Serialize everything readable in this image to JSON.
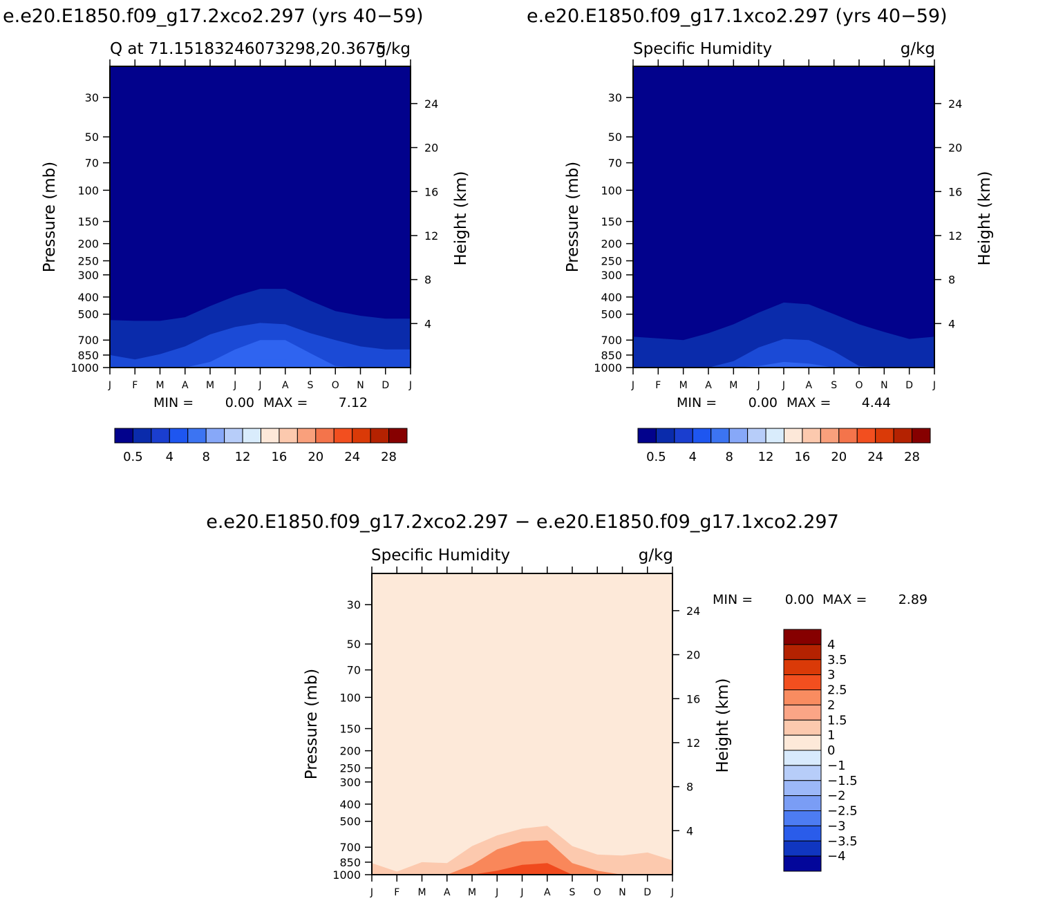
{
  "panels": [
    {
      "id": "p1",
      "run_title": "e.e20.E1850.f09_g17.2xco2.297 (yrs 40−59)",
      "left_title": "Q at 71.15183246073298,20.3675",
      "units": "g/kg",
      "min_label": "MIN =",
      "min_value": "0.00",
      "max_label": "MAX =",
      "max_value": "7.12",
      "fill": [
        "#02028c",
        "#0a2bab",
        "#1b4ad6",
        "#2f64f0"
      ],
      "colorbar": {
        "colors": [
          "#02028c",
          "#0a2bab",
          "#1a3ecf",
          "#1e56f0",
          "#3c74f2",
          "#87a8f8",
          "#b7cdf9",
          "#d9ecfc",
          "#fde8d9",
          "#fcc9ae",
          "#f9a07c",
          "#f4744b",
          "#f24f1f",
          "#da3a08",
          "#b42201",
          "#860000"
        ],
        "labels": [
          "0.5",
          "4",
          "8",
          "12",
          "16",
          "20",
          "24",
          "28"
        ]
      }
    },
    {
      "id": "p2",
      "run_title": "e.e20.E1850.f09_g17.1xco2.297 (yrs 40−59)",
      "left_title": "Specific Humidity",
      "units": "g/kg",
      "min_label": "MIN =",
      "min_value": "0.00",
      "max_label": "MAX =",
      "max_value": "4.44",
      "fill": [
        "#02028c",
        "#0a2bab",
        "#1b4ad6",
        "#2f64f0"
      ],
      "colorbar": {
        "colors": [
          "#02028c",
          "#0a2bab",
          "#1a3ecf",
          "#1e56f0",
          "#3c74f2",
          "#87a8f8",
          "#b7cdf9",
          "#d9ecfc",
          "#fde8d9",
          "#fcc9ae",
          "#f9a07c",
          "#f4744b",
          "#f24f1f",
          "#da3a08",
          "#b42201",
          "#860000"
        ],
        "labels": [
          "0.5",
          "4",
          "8",
          "12",
          "16",
          "20",
          "24",
          "28"
        ]
      }
    },
    {
      "id": "p3",
      "run_title": "e.e20.E1850.f09_g17.2xco2.297 − e.e20.E1850.f09_g17.1xco2.297",
      "left_title": "Specific Humidity",
      "units": "g/kg",
      "min_label": "MIN =",
      "min_value": "0.00",
      "max_label": "MAX =",
      "max_value": "2.89",
      "fill": [
        "#fde9d9",
        "#fcc9ae",
        "#f9875a",
        "#f04a1e"
      ],
      "colorbar": {
        "colors": [
          "#860000",
          "#b42201",
          "#da3a08",
          "#f24f1f",
          "#f98c60",
          "#fba586",
          "#fcc9ae",
          "#fde9d9",
          "#d8eafd",
          "#b7cdf9",
          "#9cb8f8",
          "#7a9df5",
          "#4d7cf2",
          "#2a5cea",
          "#1036c0",
          "#03069a"
        ],
        "labels": [
          "4",
          "3.5",
          "3",
          "2.5",
          "2",
          "1.5",
          "1",
          "0",
          "−1",
          "−1.5",
          "−2",
          "−2.5",
          "−3",
          "−3.5",
          "−4"
        ]
      }
    }
  ],
  "axes": {
    "ylabel_left": "Pressure (mb)",
    "ylabel_right": "Height (km)",
    "pressure_ticks": [
      "30",
      "50",
      "70",
      "100",
      "150",
      "200",
      "250",
      "300",
      "400",
      "500",
      "700",
      "850",
      "1000"
    ],
    "height_ticks": [
      "24",
      "20",
      "16",
      "12",
      "8",
      "4"
    ],
    "month_ticks": [
      "J",
      "F",
      "M",
      "A",
      "M",
      "J",
      "J",
      "A",
      "S",
      "O",
      "N",
      "D",
      "J"
    ]
  },
  "chart_data": [
    {
      "type": "heatmap",
      "title": "e.e20.E1850.f09_g17.2xco2.297 (yrs 40−59)",
      "subtitle": "Q at 71.15183246073298,20.3675",
      "units": "g/kg",
      "xlabel": "",
      "ylabel": "Pressure (mb)",
      "y2label": "Height (km)",
      "x": [
        "J",
        "F",
        "M",
        "A",
        "M",
        "J",
        "J",
        "A",
        "S",
        "O",
        "N",
        "D",
        "J"
      ],
      "ylim": [
        1000,
        20
      ],
      "y_scale": "log",
      "min": 0.0,
      "max": 7.12,
      "contour_top_pressure_mb": {
        "level_0.5": [
          540,
          545,
          545,
          520,
          450,
          395,
          360,
          360,
          420,
          480,
          510,
          530,
          530
        ],
        "level_1": [
          850,
          900,
          840,
          760,
          650,
          590,
          560,
          570,
          640,
          700,
          760,
          790,
          790
        ],
        "level_2": [
          1000,
          1000,
          1000,
          1000,
          930,
          790,
          700,
          700,
          830,
          980,
          1000,
          1000,
          1000
        ],
        "level_4": [
          1000,
          1000,
          1000,
          1000,
          1000,
          930,
          900,
          900,
          980,
          1000,
          1000,
          1000,
          1000
        ]
      }
    },
    {
      "type": "heatmap",
      "title": "e.e20.E1850.f09_g17.1xco2.297 (yrs 40−59)",
      "subtitle": "Specific Humidity",
      "units": "g/kg",
      "xlabel": "",
      "ylabel": "Pressure (mb)",
      "y2label": "Height (km)",
      "x": [
        "J",
        "F",
        "M",
        "A",
        "M",
        "J",
        "J",
        "A",
        "S",
        "O",
        "N",
        "D",
        "J"
      ],
      "ylim": [
        1000,
        20
      ],
      "y_scale": "log",
      "min": 0.0,
      "max": 4.44,
      "contour_top_pressure_mb": {
        "level_0.5": [
          670,
          685,
          700,
          640,
          570,
          490,
          430,
          440,
          500,
          570,
          630,
          690,
          670
        ],
        "level_1": [
          1000,
          1000,
          1000,
          1000,
          920,
          770,
          690,
          700,
          810,
          980,
          1000,
          1000,
          1000
        ],
        "level_2": [
          1000,
          1000,
          1000,
          1000,
          1000,
          980,
          930,
          950,
          1000,
          1000,
          1000,
          1000,
          1000
        ]
      }
    },
    {
      "type": "heatmap",
      "title": "e.e20.E1850.f09_g17.2xco2.297 − e.e20.E1850.f09_g17.1xco2.297",
      "subtitle": "Specific Humidity",
      "units": "g/kg",
      "xlabel": "",
      "ylabel": "Pressure (mb)",
      "y2label": "Height (km)",
      "x": [
        "J",
        "F",
        "M",
        "A",
        "M",
        "J",
        "J",
        "A",
        "S",
        "O",
        "N",
        "D",
        "J"
      ],
      "ylim": [
        1000,
        20
      ],
      "y_scale": "log",
      "min": 0.0,
      "max": 2.89,
      "contour_top_pressure_mb": {
        "level_1": [
          860,
          960,
          850,
          860,
          690,
          600,
          550,
          530,
          690,
          770,
          780,
          750,
          830
        ],
        "level_1.5": [
          1000,
          1000,
          1000,
          1000,
          880,
          720,
          650,
          640,
          860,
          950,
          1000,
          1000,
          1000
        ],
        "level_2.5": [
          1000,
          1000,
          1000,
          1000,
          1000,
          950,
          880,
          860,
          1000,
          1000,
          1000,
          1000,
          1000
        ]
      }
    }
  ]
}
